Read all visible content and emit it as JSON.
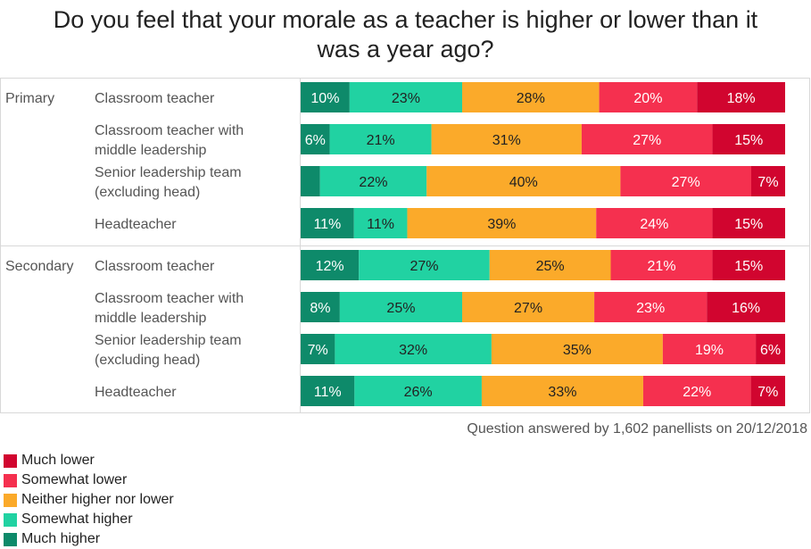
{
  "chart_data": {
    "type": "bar",
    "orientation": "horizontal",
    "stacked": true,
    "normalized": true,
    "title_lines": [
      "Do you feel that your morale as a teacher is higher or lower than it",
      "was a year ago?"
    ],
    "groups": [
      {
        "name": "Primary",
        "rows": [
          {
            "label_lines": [
              "Classroom teacher"
            ],
            "values": [
              10,
              23,
              28,
              20,
              18
            ],
            "labels": [
              "10%",
              "23%",
              "28%",
              "20%",
              "18%"
            ]
          },
          {
            "label_lines": [
              "Classroom teacher with",
              "middle leadership"
            ],
            "values": [
              6,
              21,
              31,
              27,
              15
            ],
            "labels": [
              "6%",
              "21%",
              "31%",
              "27%",
              "15%"
            ]
          },
          {
            "label_lines": [
              "Senior leadership team",
              "(excluding head)"
            ],
            "values": [
              4,
              22,
              40,
              27,
              7
            ],
            "labels": [
              "",
              "22%",
              "40%",
              "27%",
              "7%"
            ]
          },
          {
            "label_lines": [
              "Headteacher"
            ],
            "values": [
              11,
              11,
              39,
              24,
              15
            ],
            "labels": [
              "11%",
              "11%",
              "39%",
              "24%",
              "15%"
            ]
          }
        ]
      },
      {
        "name": "Secondary",
        "rows": [
          {
            "label_lines": [
              "Classroom teacher"
            ],
            "values": [
              12,
              27,
              25,
              21,
              15
            ],
            "labels": [
              "12%",
              "27%",
              "25%",
              "21%",
              "15%"
            ]
          },
          {
            "label_lines": [
              "Classroom teacher with",
              "middle leadership"
            ],
            "values": [
              8,
              25,
              27,
              23,
              16
            ],
            "labels": [
              "8%",
              "25%",
              "27%",
              "23%",
              "16%"
            ]
          },
          {
            "label_lines": [
              "Senior leadership team",
              "(excluding head)"
            ],
            "values": [
              7,
              32,
              35,
              19,
              6
            ],
            "labels": [
              "7%",
              "32%",
              "35%",
              "19%",
              "6%"
            ]
          },
          {
            "label_lines": [
              "Headteacher"
            ],
            "values": [
              11,
              26,
              33,
              22,
              7
            ],
            "labels": [
              "11%",
              "26%",
              "33%",
              "22%",
              "7%"
            ]
          }
        ]
      }
    ],
    "series": [
      {
        "name": "Much higher",
        "color": "#0e8a6a",
        "label_color": "#ffffff"
      },
      {
        "name": "Somewhat higher",
        "color": "#21d2a2",
        "label_color": "#222222"
      },
      {
        "name": "Neither higher nor lower",
        "color": "#fbaa2a",
        "label_color": "#222222"
      },
      {
        "name": "Somewhat lower",
        "color": "#f5304f",
        "label_color": "#ffffff"
      },
      {
        "name": "Much lower",
        "color": "#d1052f",
        "label_color": "#ffffff"
      }
    ],
    "legend_order": [
      "Much lower",
      "Somewhat lower",
      "Neither higher nor lower",
      "Somewhat higher",
      "Much higher"
    ],
    "footnote": "Question answered by 1,602 panellists on 20/12/2018"
  }
}
